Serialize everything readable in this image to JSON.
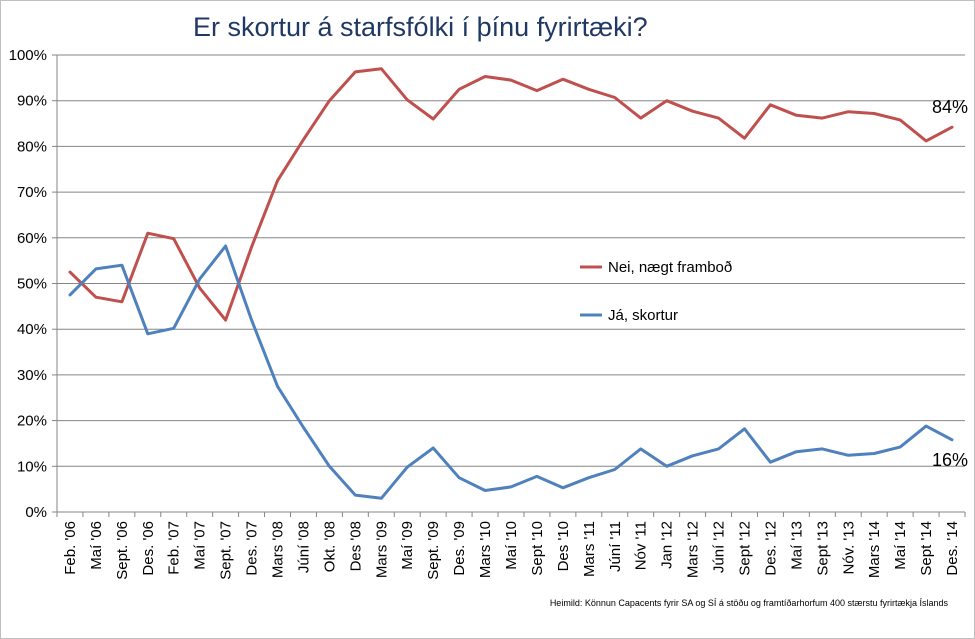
{
  "chart_data": {
    "type": "line",
    "title": "Er skortur á starfsfólki í þínu fyrirtæki?",
    "categories": [
      "Feb. '06",
      "Maí '06",
      "Sept. '06",
      "Des. '06",
      "Feb. '07",
      "Maí '07",
      "Sept. '07",
      "Des. '07",
      "Mars '08",
      "Júní '08",
      "Okt. '08",
      "Des '08",
      "Mars '09",
      "Maí '09",
      "Sept. '09",
      "Des. '09",
      "Mars '10",
      "Maí '10",
      "Sept '10",
      "Des '10",
      "Mars '11",
      "Júní '11",
      "Nóv '11",
      "Jan '12",
      "Mars '12",
      "Júní '12",
      "Sept '12",
      "Des. '12",
      "Maí '13",
      "Sept '13",
      "Nóv. '13",
      "Mars '14",
      "Maí '14",
      "Sept '14",
      "Des. '14"
    ],
    "ylim": [
      0,
      100
    ],
    "yticks": [
      "0%",
      "10%",
      "20%",
      "30%",
      "40%",
      "50%",
      "60%",
      "70%",
      "80%",
      "90%",
      "100%"
    ],
    "grid": true,
    "legend_placement": "center-right",
    "series": [
      {
        "name": "Nei, nægt framboð",
        "color": "#c0504d",
        "values": [
          52.5,
          47,
          46,
          61,
          59.8,
          49,
          42,
          58,
          72.5,
          81.5,
          90,
          96.3,
          97,
          90.2,
          86,
          92.5,
          95.3,
          94.5,
          92.2,
          94.7,
          92.5,
          90.7,
          86.2,
          90,
          87.7,
          86.2,
          81.8,
          89.1,
          86.8,
          86.2,
          87.6,
          87.2,
          85.8,
          81.2,
          84.2
        ],
        "end_label": "84%"
      },
      {
        "name": "Já, skortur",
        "color": "#4f81bd",
        "values": [
          47.5,
          53.2,
          54,
          39,
          40.2,
          51,
          58.2,
          42,
          27.5,
          18.5,
          10,
          3.7,
          3,
          9.8,
          14,
          7.5,
          4.7,
          5.5,
          7.8,
          5.3,
          7.5,
          9.3,
          13.8,
          10,
          12.3,
          13.8,
          18.2,
          10.9,
          13.2,
          13.8,
          12.4,
          12.8,
          14.2,
          18.8,
          15.8
        ],
        "end_label": "16%"
      }
    ],
    "source": "Heimild: Könnun Capacents fyrir SA og SÍ á stöðu og framtíðarhorfum 400 stærstu fyrirtækja Íslands"
  }
}
